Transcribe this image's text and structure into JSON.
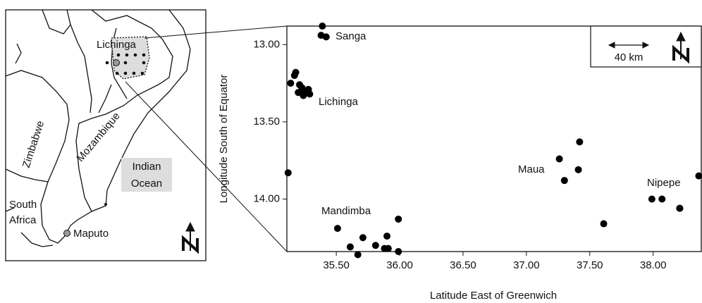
{
  "chart_data": {
    "type": "scatter",
    "x_label": "Latitude East of Greenwich",
    "y_label": "Longitude South of Equator",
    "x": [
      35.39,
      35.38,
      35.42,
      35.18,
      35.17,
      35.14,
      35.21,
      35.23,
      35.25,
      35.28,
      35.29,
      35.24,
      35.2,
      35.12,
      35.51,
      35.61,
      35.67,
      35.71,
      35.81,
      35.88,
      35.9,
      35.91,
      35.99,
      35.99,
      37.26,
      37.3,
      37.41,
      37.42,
      37.61,
      37.99,
      38.07,
      38.21,
      38.21,
      38.36
    ],
    "values": [
      12.88,
      12.94,
      12.95,
      13.18,
      13.2,
      13.25,
      13.26,
      13.28,
      13.3,
      13.29,
      13.32,
      13.33,
      13.31,
      13.83,
      14.19,
      14.31,
      14.36,
      14.25,
      14.3,
      14.32,
      14.24,
      14.32,
      14.13,
      14.34,
      13.74,
      13.88,
      13.81,
      13.63,
      14.16,
      14.0,
      14.0,
      14.06,
      14.06,
      13.85
    ],
    "color": "#000000",
    "xlim": [
      35.11,
      38.38
    ],
    "ylim": [
      12.88,
      14.34
    ],
    "invert_y": true,
    "xticks": [
      {
        "value": 35.5,
        "label": "35.50"
      },
      {
        "value": 36,
        "label": "36.00"
      },
      {
        "value": 36.5,
        "label": "36.50"
      },
      {
        "value": 37,
        "label": "37.00"
      },
      {
        "value": 37.5,
        "label": "37.50"
      },
      {
        "value": 38,
        "label": "38.00"
      }
    ],
    "yticks": [
      {
        "value": 13,
        "label": "13.00"
      },
      {
        "value": 13.5,
        "label": "13.50"
      },
      {
        "value": 14,
        "label": "14.00"
      }
    ],
    "annotations": [
      "Sanga",
      "Lichinga",
      "Maua",
      "Nipepe",
      "Mandimba"
    ],
    "scale_bar": "40 km"
  },
  "map": {
    "labels": [
      "Lichinga",
      "Zimbabwe",
      "Mozambique",
      "Indian",
      "Ocean",
      "South",
      "Africa",
      "Maputo"
    ]
  }
}
